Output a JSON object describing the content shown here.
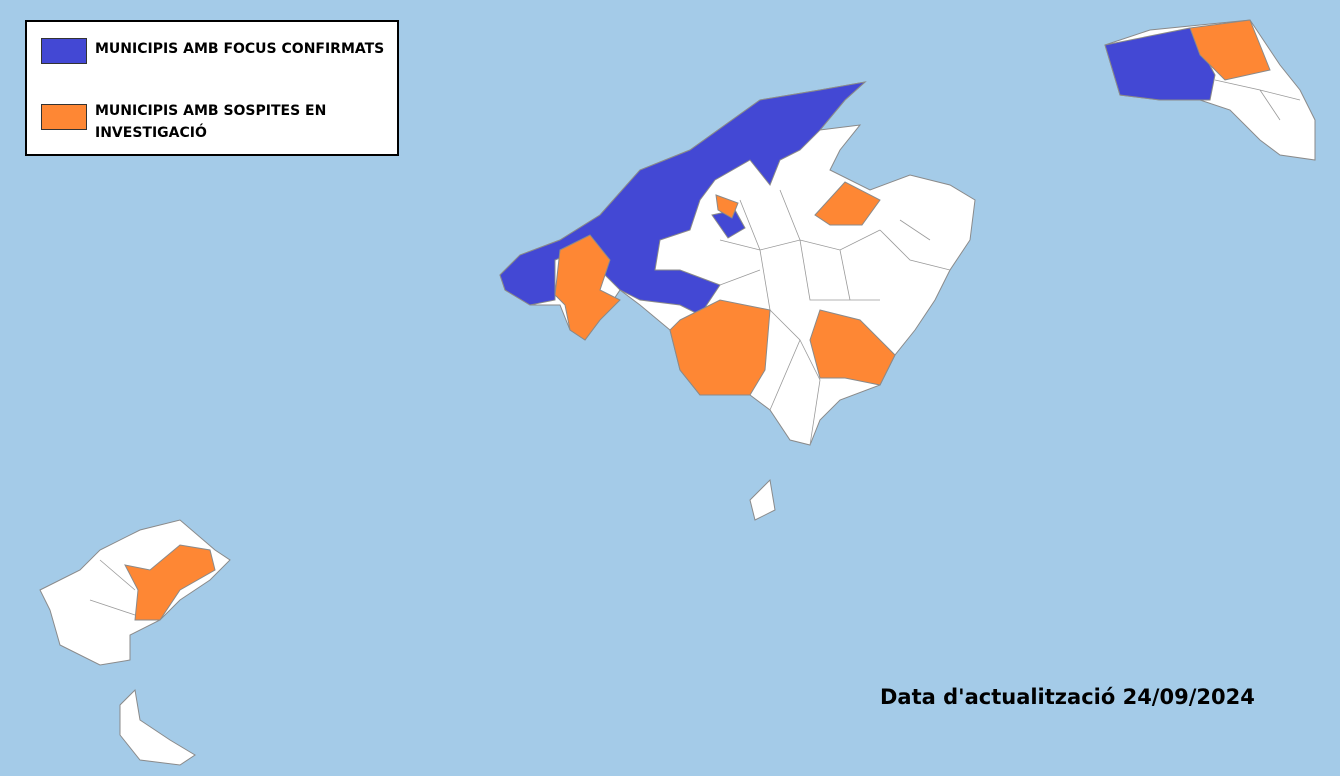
{
  "legend": {
    "items": [
      {
        "label": "MUNICIPIS AMB FOCUS CONFIRMATS",
        "color": "#4348d4"
      },
      {
        "label": "MUNICIPIS AMB SOSPITES EN INVESTIGACIÓ",
        "color": "#fe8734"
      }
    ]
  },
  "update_note": "Data d'actualització 24/09/2024"
}
